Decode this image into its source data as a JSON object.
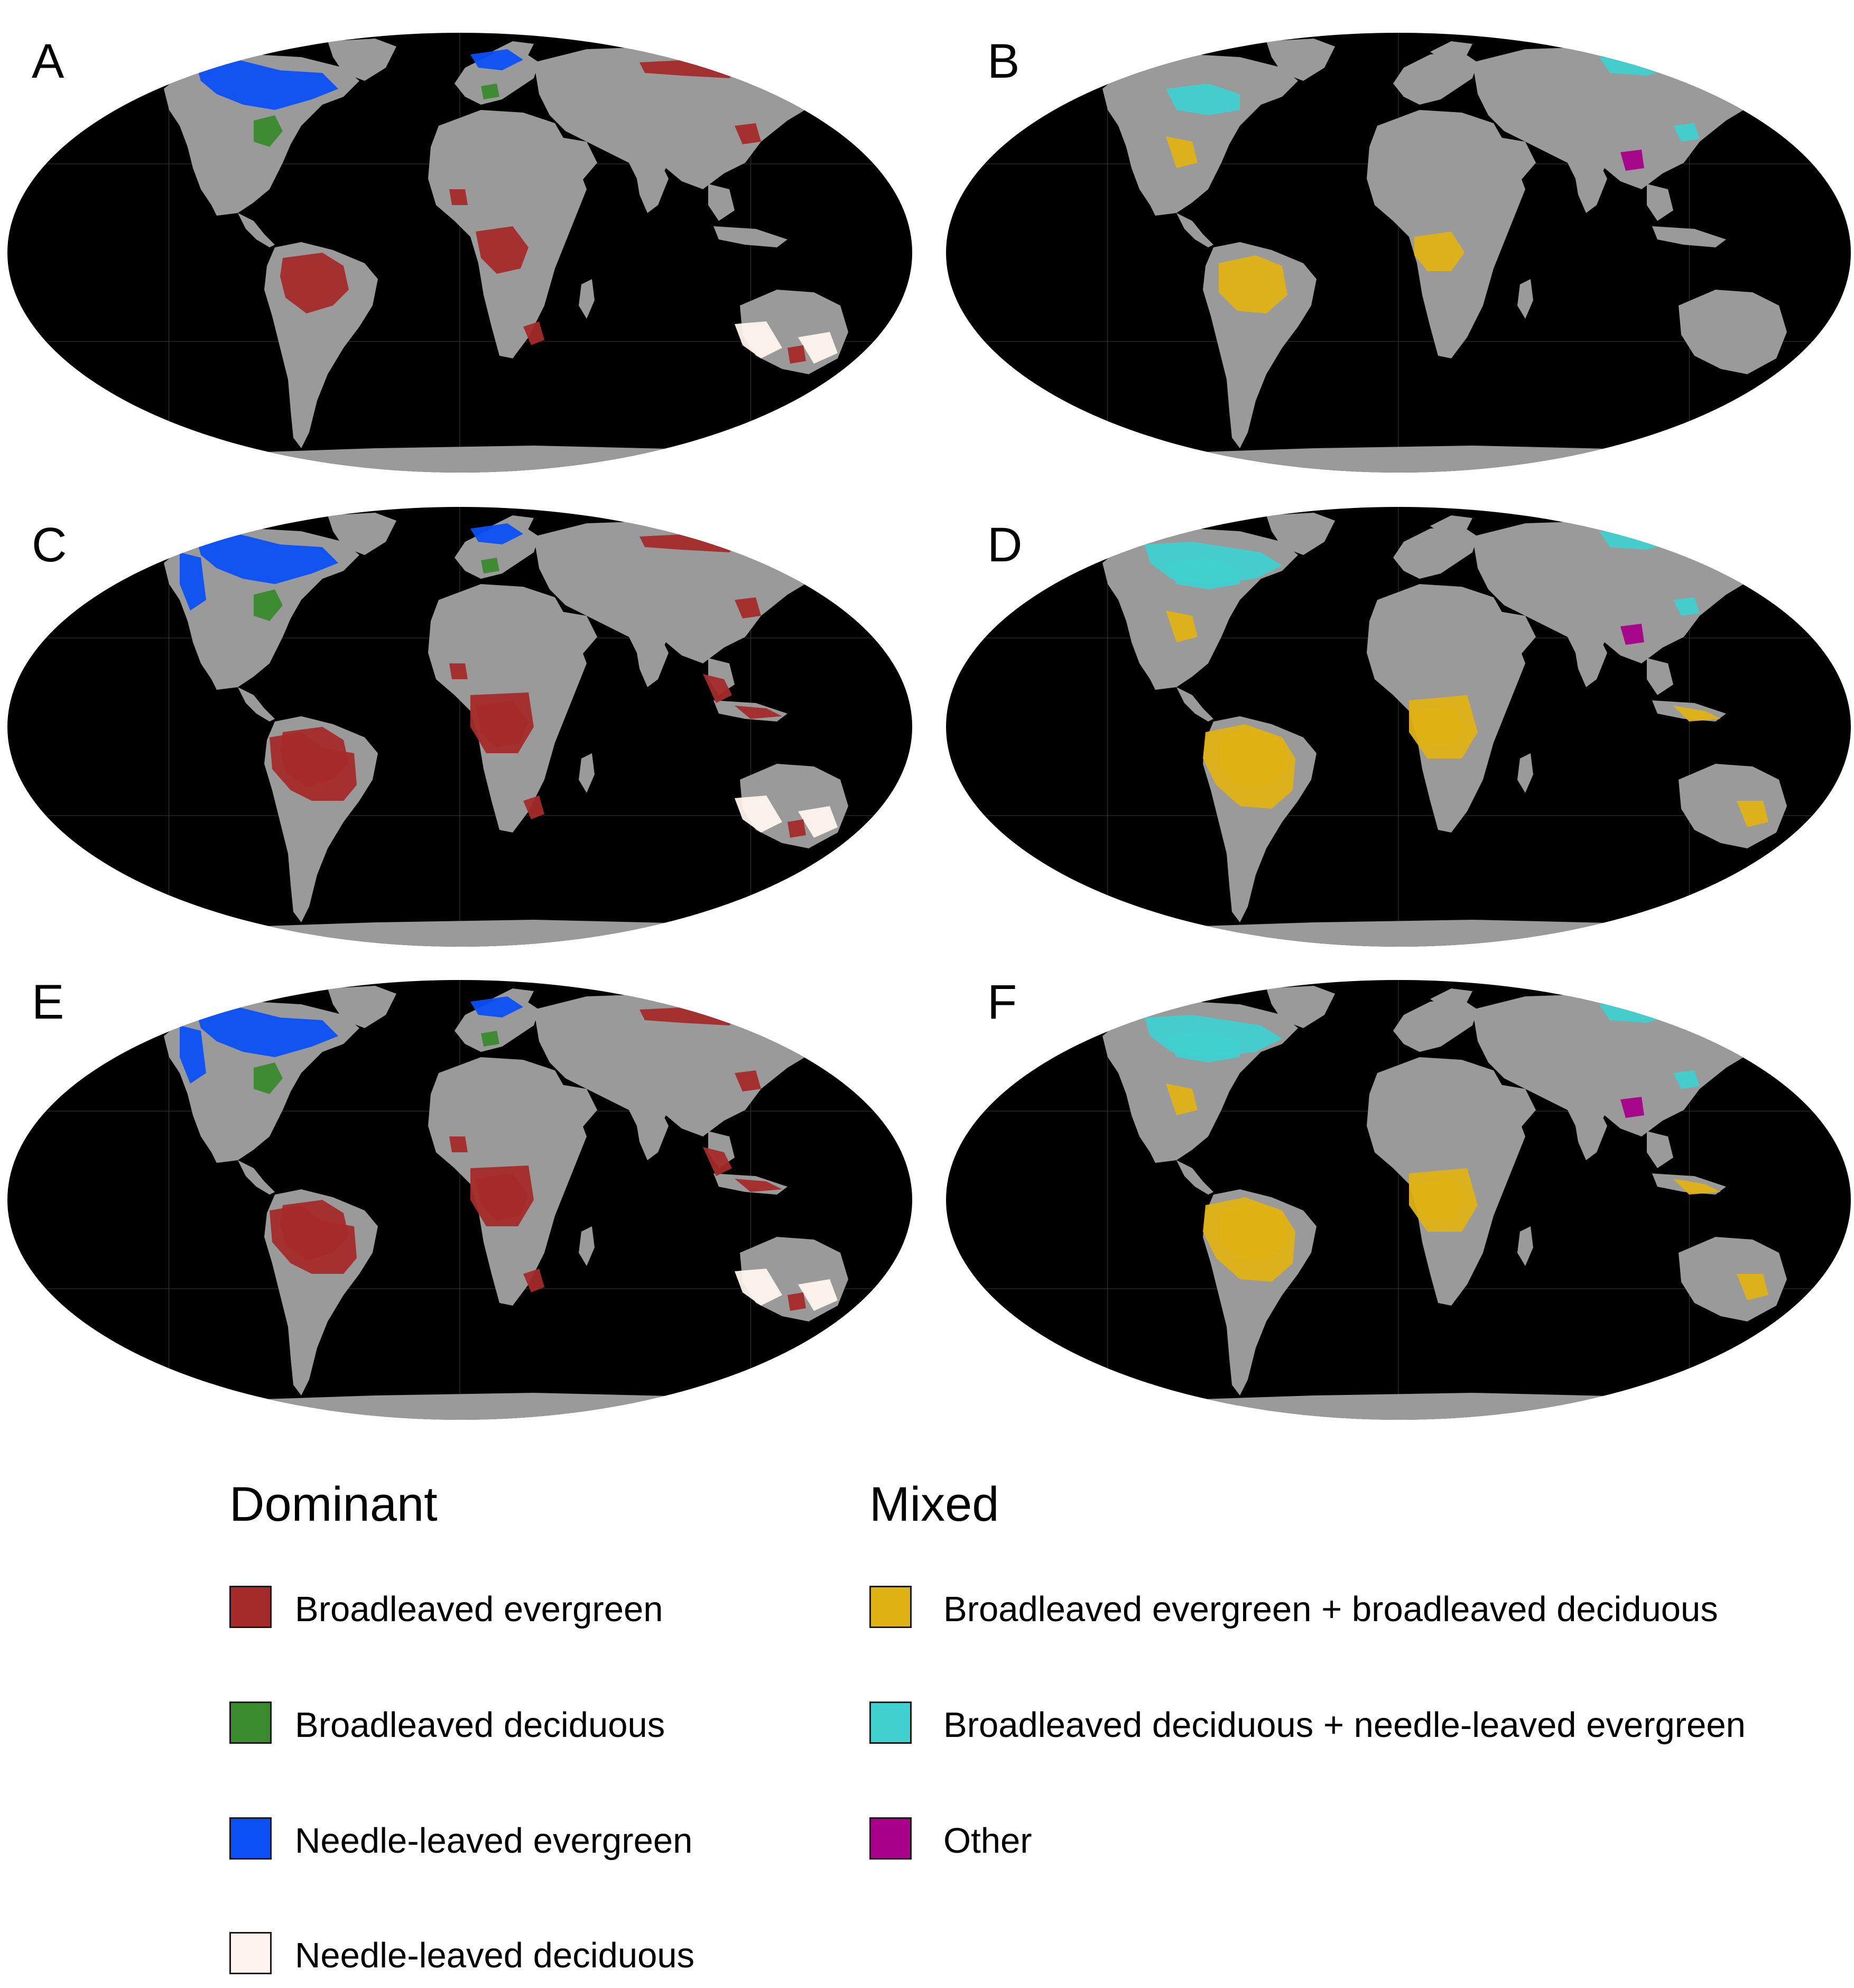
{
  "panels": [
    {
      "id": "a",
      "letter": "A",
      "set": "dominant",
      "extent": 0.6
    },
    {
      "id": "b",
      "letter": "B",
      "set": "mixed",
      "extent": 0.6
    },
    {
      "id": "c",
      "letter": "C",
      "set": "dominant",
      "extent": 0.85
    },
    {
      "id": "d",
      "letter": "D",
      "set": "mixed",
      "extent": 0.85
    },
    {
      "id": "e",
      "letter": "E",
      "set": "dominant",
      "extent": 1.0
    },
    {
      "id": "f",
      "letter": "F",
      "set": "mixed",
      "extent": 1.0
    }
  ],
  "map_colors": {
    "ocean": "#000000",
    "land": "#9a9a9a",
    "graticule": "#3a3a3a"
  },
  "legend": {
    "dominant": {
      "title": "Dominant",
      "items": [
        {
          "label": "Broadleaved evergreen",
          "color": "#a52a2a"
        },
        {
          "label": "Broadleaved deciduous",
          "color": "#3a8a2e"
        },
        {
          "label": "Needle-leaved evergreen",
          "color": "#0a50f5"
        },
        {
          "label": "Needle-leaved deciduous",
          "color": "#fff5ee"
        }
      ]
    },
    "mixed": {
      "title": "Mixed",
      "items": [
        {
          "label": "Broadleaved evergreen + broadleaved deciduous",
          "color": "#e0b214"
        },
        {
          "label": "Broadleaved deciduous + needle-leaved evergreen",
          "color": "#40d0d0"
        },
        {
          "label": "Other",
          "color": "#a8008a"
        }
      ]
    }
  }
}
